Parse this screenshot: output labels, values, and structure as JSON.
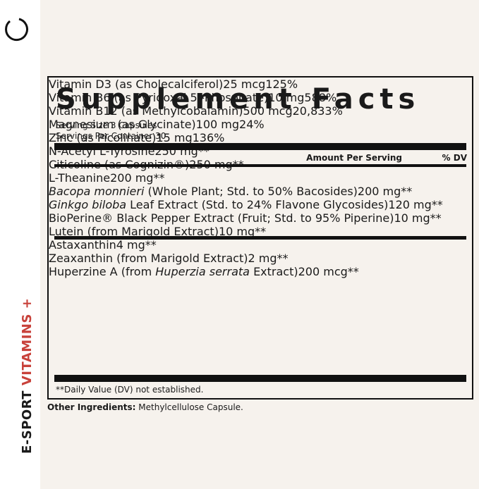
{
  "brand": {
    "parts": [
      "E-SPORT",
      "VITAMINS",
      "+"
    ]
  },
  "label": {
    "title": "Supplement Facts",
    "serving_size": "Serving Size 3 Capsules",
    "servings_per_container": "Servings Per Container 30",
    "header": {
      "amount": "Amount Per Serving",
      "dv": "% DV"
    },
    "groups": [
      [
        {
          "name": "Vitamin D3 (as Cholecalciferol)",
          "amount": "25 mcg",
          "dv": "125%"
        },
        {
          "name": "Vitamin B6 (as Pyridoxal 5'-Phosphate)",
          "amount": "10 mg",
          "dv": "588%"
        },
        {
          "name": "Vitamin B12 (as Methylcobalamin)",
          "amount": "500 mcg",
          "dv": "20,833%"
        },
        {
          "name": "Magnesium (as Glycinate)",
          "amount": "100 mg",
          "dv": "24%"
        },
        {
          "name": "Zinc (as Picolinate)",
          "amount": "15 mg",
          "dv": "136%"
        }
      ],
      [
        {
          "name": "N-Acetyl L-Tyrosine",
          "amount": "250 mg",
          "dv": "**"
        },
        {
          "name": "Citicoline (as Cognizin®)",
          "amount": "250 mg",
          "dv": "**"
        },
        {
          "name": "L-Theanine",
          "amount": "200 mg",
          "dv": "**"
        },
        {
          "name": [
            {
              "text": "Bacopa monnieri",
              "italic": true
            },
            {
              "text": "(Whole Plant; Std. to 50% Bacosides)"
            }
          ],
          "amount": "200 mg",
          "dv": "**"
        },
        {
          "name": [
            {
              "text": "Ginkgo biloba",
              "italic": true
            },
            {
              "text": "Leaf Extract (Std. to 24% Flavone Glycosides)"
            }
          ],
          "amount": "120 mg",
          "dv": "**"
        },
        {
          "name": "BioPerine® Black Pepper Extract (Fruit; Std. to 95% Piperine)",
          "amount": "10 mg",
          "dv": "**"
        },
        {
          "name": "Lutein (from Marigold Extract)",
          "amount": "10 mg",
          "dv": "**"
        },
        {
          "name": "Astaxanthin",
          "amount": "4 mg",
          "dv": "**"
        },
        {
          "name": "Zeaxanthin (from Marigold Extract)",
          "amount": "2 mg",
          "dv": "**"
        },
        {
          "name": [
            {
              "text": "Huperzine A (from"
            },
            {
              "text": "Huperzia serrata",
              "italic": true
            },
            {
              "text": "Extract)"
            }
          ],
          "amount": "200 mcg",
          "dv": "**"
        }
      ]
    ],
    "footnote": "**Daily Value (DV) not established.",
    "other_ingredients": {
      "label": "Other Ingredients:",
      "text": "Methylcellulose Capsule."
    }
  }
}
